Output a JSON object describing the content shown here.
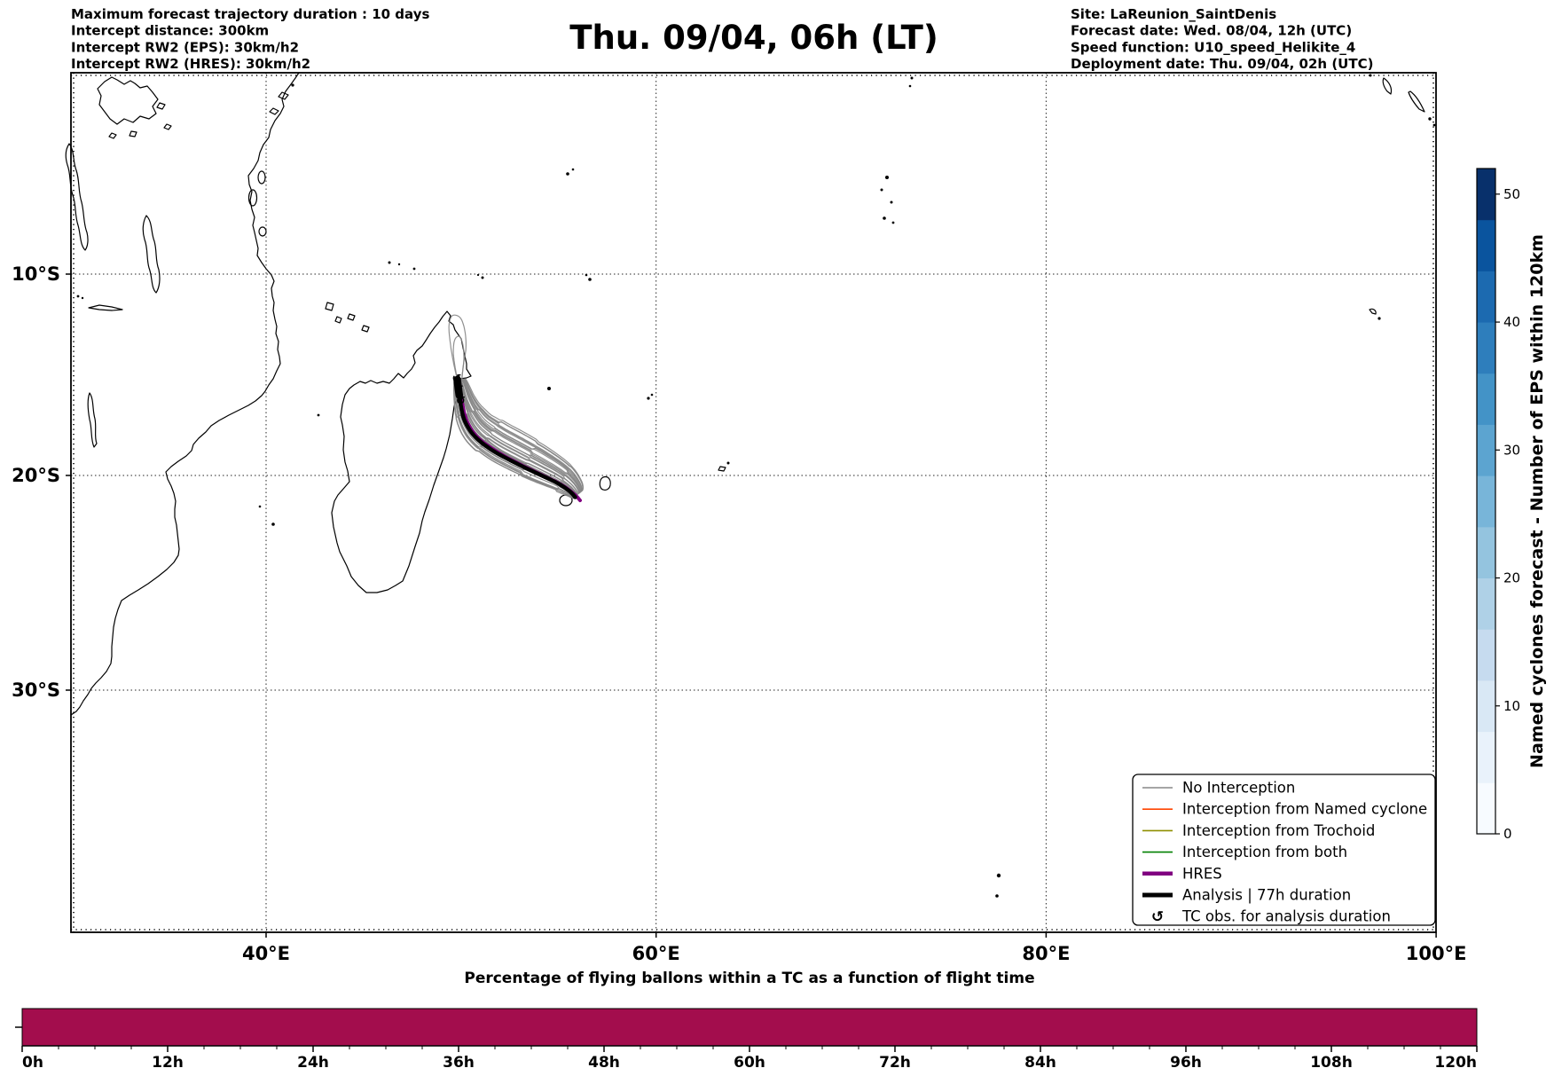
{
  "header": {
    "title": "Thu. 09/04, 06h (LT)",
    "info_left": [
      "Maximum forecast trajectory duration : 10 days",
      "Intercept distance: 300km",
      "Intercept RW2 (EPS):  30km/h2",
      "Intercept RW2 (HRES): 30km/h2"
    ],
    "info_right": [
      "Site: LaReunion_SaintDenis",
      "Forecast date: Wed. 08/04, 12h (UTC)",
      "Speed function: U10_speed_Helikite_4",
      "Deployment date: Thu. 09/04, 02h (UTC)"
    ]
  },
  "map": {
    "lat_ticks": [
      {
        "value": 10,
        "label": "10°S"
      },
      {
        "value": 20,
        "label": "20°S"
      },
      {
        "value": 30,
        "label": "30°S"
      }
    ],
    "lon_ticks": [
      {
        "value": 40,
        "label": "40°E"
      },
      {
        "value": 60,
        "label": "60°E"
      },
      {
        "value": 80,
        "label": "80°E"
      },
      {
        "value": 100,
        "label": "100°E"
      }
    ],
    "legend": {
      "items": [
        {
          "label": "No Interception",
          "color": "#878787",
          "width": 1.6
        },
        {
          "label": "Interception from Named cyclone",
          "color": "#ff4500",
          "width": 1.6
        },
        {
          "label": "Interception from Trochoid",
          "color": "#8f8f00",
          "width": 1.6
        },
        {
          "label": "Interception from both",
          "color": "#008000",
          "width": 1.6
        },
        {
          "label": "HRES",
          "color": "#800080",
          "width": 4.5
        },
        {
          "label": "Analysis | 77h duration",
          "color": "#000000",
          "width": 5
        },
        {
          "label": "TC obs. for analysis duration",
          "glyph": "↺"
        }
      ]
    }
  },
  "colorbar": {
    "label": "Named cyclones forecast - Number of EPS within 120km",
    "ticks": [
      0,
      10,
      20,
      30,
      40,
      50
    ],
    "vmin": 0,
    "vmax": 52,
    "segment_colors": [
      "#f7fbff",
      "#e9f2fb",
      "#d9e8f5",
      "#c6dbef",
      "#afd1e7",
      "#94c4df",
      "#78b5d9",
      "#5ca4d0",
      "#4393c7",
      "#2e7ebc",
      "#1c6ab0",
      "#0a549e",
      "#08306b"
    ]
  },
  "bottom_chart": {
    "title": "Percentage of flying ballons within a TC as a function of flight time",
    "x_tick_labels": [
      "0h",
      "12h",
      "24h",
      "36h",
      "48h",
      "60h",
      "72h",
      "84h",
      "96h",
      "108h",
      "120h"
    ],
    "bar_color": "#a30d4d"
  },
  "chart_data": [
    {
      "type": "line",
      "name": "tc-trajectory-map",
      "title": "Thu. 09/04, 06h (LT)",
      "projection": "mercator",
      "xlabel_ticks": [
        "40°E",
        "60°E",
        "80°E",
        "100°E"
      ],
      "ylabel_ticks": [
        "10°S",
        "20°S",
        "30°S"
      ],
      "lon_range_E": [
        30,
        100
      ],
      "lat_range_S": [
        -0.3,
        40.1
      ],
      "grid": "dotted",
      "legend_position": "lower right",
      "series": [
        {
          "name": "Analysis | 77h duration",
          "color": "#000000",
          "width": 4.5,
          "lonlat": [
            [
              49.8,
              15.3
            ],
            [
              49.95,
              16.35
            ],
            [
              50.15,
              17.25
            ],
            [
              50.65,
              18.05
            ],
            [
              51.55,
              18.75
            ],
            [
              52.7,
              19.35
            ],
            [
              53.9,
              19.9
            ],
            [
              54.9,
              20.35
            ],
            [
              55.55,
              20.75
            ],
            [
              55.85,
              21.05
            ]
          ]
        },
        {
          "name": "HRES",
          "color": "#800080",
          "width": 4,
          "lonlat": [
            [
              49.9,
              15.35
            ],
            [
              50.05,
              16.4
            ],
            [
              50.3,
              17.35
            ],
            [
              50.85,
              18.15
            ],
            [
              51.85,
              18.85
            ],
            [
              53.0,
              19.45
            ],
            [
              54.2,
              20.0
            ],
            [
              55.15,
              20.45
            ],
            [
              55.8,
              20.9
            ],
            [
              56.1,
              21.2
            ]
          ]
        },
        {
          "name": "EPS ensemble - No Interception",
          "color": "#878787",
          "width": 1.2,
          "count": 30,
          "base_lonlat": [
            [
              49.8,
              15.3
            ],
            [
              49.95,
              16.35
            ],
            [
              50.2,
              17.2
            ],
            [
              50.7,
              18.0
            ],
            [
              51.6,
              18.7
            ],
            [
              52.75,
              19.3
            ],
            [
              53.95,
              19.85
            ],
            [
              54.95,
              20.3
            ],
            [
              55.6,
              20.7
            ],
            [
              55.9,
              21.0
            ]
          ],
          "loops_lonlat": [
            [
              [
                49.78,
                15.2
              ],
              [
                49.6,
                14.4
              ],
              [
                49.45,
                13.5
              ],
              [
                49.38,
                12.6
              ],
              [
                49.55,
                12.1
              ],
              [
                49.95,
                12.2
              ],
              [
                50.18,
                12.8
              ],
              [
                50.25,
                13.7
              ],
              [
                50.1,
                14.7
              ],
              [
                50.05,
                15.7
              ],
              [
                50.35,
                16.9
              ],
              [
                51.0,
                17.95
              ],
              [
                52.1,
                18.8
              ],
              [
                53.4,
                19.5
              ],
              [
                54.55,
                20.1
              ],
              [
                55.35,
                20.6
              ],
              [
                55.75,
                21.0
              ]
            ],
            [
              [
                49.8,
                15.25
              ],
              [
                49.68,
                14.6
              ],
              [
                49.6,
                13.9
              ],
              [
                49.68,
                13.3
              ],
              [
                49.92,
                13.15
              ],
              [
                50.1,
                13.6
              ],
              [
                50.14,
                14.35
              ],
              [
                50.05,
                15.25
              ],
              [
                50.12,
                16.25
              ],
              [
                50.55,
                17.35
              ],
              [
                51.45,
                18.35
              ],
              [
                52.65,
                19.15
              ],
              [
                53.85,
                19.75
              ],
              [
                54.85,
                20.3
              ],
              [
                55.5,
                20.78
              ]
            ]
          ]
        }
      ],
      "markers": [
        {
          "name": "TC obs. for analysis duration",
          "glyph": "↺",
          "lonlat": [
            [
              49.78,
              15.25
            ],
            [
              49.88,
              15.8
            ],
            [
              49.98,
              16.35
            ]
          ]
        }
      ]
    },
    {
      "type": "bar",
      "name": "flying-balloons-percentage",
      "title": "Percentage of flying ballons within a TC as a function of flight time",
      "x_ticks_h": [
        0,
        12,
        24,
        36,
        48,
        60,
        72,
        84,
        96,
        108,
        120
      ],
      "x_minor_step_h": 3,
      "bars": [
        {
          "x0_h": 0,
          "x1_h": 120,
          "value_percent": 100
        }
      ],
      "color": "#a30d4d",
      "ylabel": "",
      "note": "single flat full-height bar spanning 0h-120h; y tick unlabeled"
    }
  ]
}
